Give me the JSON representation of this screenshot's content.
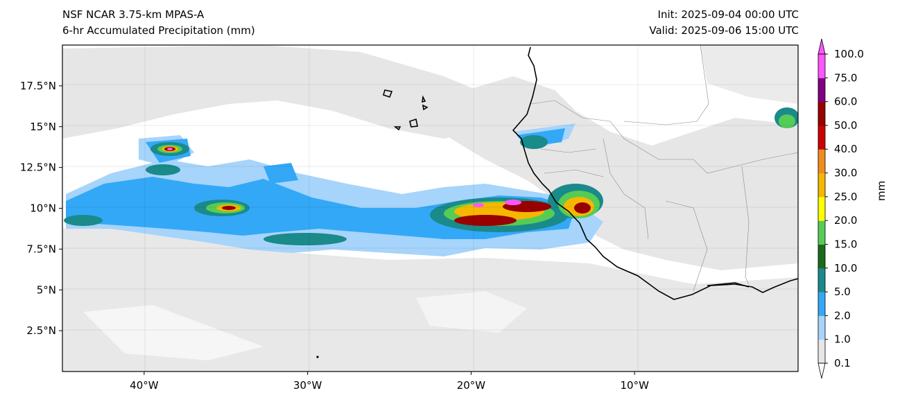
{
  "header": {
    "model": "NSF NCAR 3.75-km MPAS-A",
    "field": "6-hr Accumulated Precipitation (mm)",
    "init": "Init: 2025-09-04 00:00 UTC",
    "valid": "Valid: 2025-09-06 15:00 UTC"
  },
  "map": {
    "extent": {
      "lon_min": -45,
      "lon_max": 0,
      "lat_min": 0,
      "lat_max": 20
    },
    "lon_ticks": [
      {
        "lon": -40,
        "label": "40°W"
      },
      {
        "lon": -30,
        "label": "30°W"
      },
      {
        "lon": -20,
        "label": "20°W"
      },
      {
        "lon": -10,
        "label": "10°W"
      }
    ],
    "lat_ticks": [
      {
        "lat": 17.5,
        "label": "17.5°N"
      },
      {
        "lat": 15,
        "label": "15°N"
      },
      {
        "lat": 12.5,
        "label": "12.5°N"
      },
      {
        "lat": 10,
        "label": "10°N"
      },
      {
        "lat": 7.5,
        "label": "7.5°N"
      },
      {
        "lat": 5,
        "label": "5°N"
      },
      {
        "lat": 2.5,
        "label": "2.5°N"
      }
    ],
    "gridlines": true,
    "land_color": "#e6e6e6",
    "coast_color": "#000000"
  },
  "colorbar": {
    "unit": "mm",
    "levels": [
      "0.1",
      "1.0",
      "2.0",
      "5.0",
      "10.0",
      "15.0",
      "20.0",
      "25.0",
      "30.0",
      "40.0",
      "50.0",
      "60.0",
      "75.0",
      "100.0"
    ],
    "colors": [
      "#e6e6e6",
      "#a6d4fb",
      "#33a8f7",
      "#1a8a8a",
      "#1a6b1a",
      "#55cc55",
      "#ffff00",
      "#f5b700",
      "#f08c1e",
      "#cc0000",
      "#990000",
      "#800080",
      "#ff55ff"
    ],
    "extend": "both"
  }
}
